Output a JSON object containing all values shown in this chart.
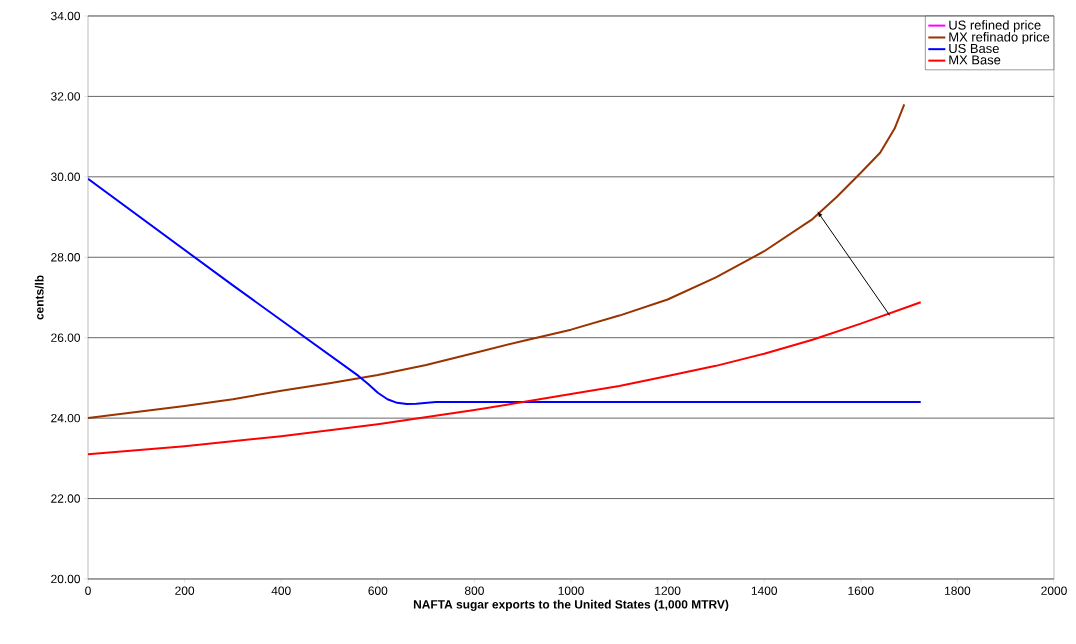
{
  "chart_data": {
    "type": "line",
    "xlabel": "NAFTA sugar exports to the United States (1,000 MTRV)",
    "ylabel": "cents/lb",
    "xlim": [
      0,
      2000
    ],
    "xticks": [
      0,
      200,
      400,
      600,
      800,
      1000,
      1200,
      1400,
      1600,
      1800,
      2000
    ],
    "ylim": [
      20,
      34
    ],
    "yticks": [
      {
        "value": 20,
        "label": "20.00"
      },
      {
        "value": 22,
        "label": "22.00"
      },
      {
        "value": 24,
        "label": "24.00"
      },
      {
        "value": 26,
        "label": "26.00"
      },
      {
        "value": 28,
        "label": "28.00"
      },
      {
        "value": 30,
        "label": "30.00"
      },
      {
        "value": 32,
        "label": "32.00"
      },
      {
        "value": 34,
        "label": "34.00"
      }
    ],
    "grid": "y",
    "legend": "top right",
    "marker": "none",
    "line_style": "solid",
    "series": [
      {
        "name": "US refined price",
        "color": "#ff00ff",
        "values": [
          null
        ]
      },
      {
        "name": "MX refinado price",
        "color": "#993300",
        "x": [
          0,
          100,
          200,
          300,
          400,
          500,
          600,
          700,
          800,
          900,
          1000,
          1100,
          1200,
          1300,
          1400,
          1500,
          1550,
          1600,
          1640,
          1670,
          1690
        ],
        "values": [
          24.0,
          24.15,
          24.3,
          24.47,
          24.68,
          24.87,
          25.07,
          25.32,
          25.62,
          25.92,
          26.2,
          26.55,
          26.95,
          27.5,
          28.15,
          28.95,
          29.5,
          30.1,
          30.6,
          31.2,
          31.8
        ]
      },
      {
        "name": "US Base",
        "color": "#0000ff",
        "x": [
          0,
          300,
          560,
          580,
          600,
          620,
          640,
          660,
          680,
          700,
          720,
          1724
        ],
        "values": [
          29.95,
          27.3,
          25.05,
          24.85,
          24.63,
          24.47,
          24.38,
          24.35,
          24.36,
          24.38,
          24.4,
          24.4
        ]
      },
      {
        "name": "MX Base",
        "color": "#ff0000",
        "x": [
          0,
          200,
          400,
          600,
          800,
          1000,
          1100,
          1200,
          1300,
          1400,
          1500,
          1600,
          1724
        ],
        "values": [
          23.1,
          23.3,
          23.55,
          23.85,
          24.2,
          24.6,
          24.8,
          25.05,
          25.3,
          25.6,
          25.95,
          26.35,
          26.88
        ]
      }
    ]
  }
}
